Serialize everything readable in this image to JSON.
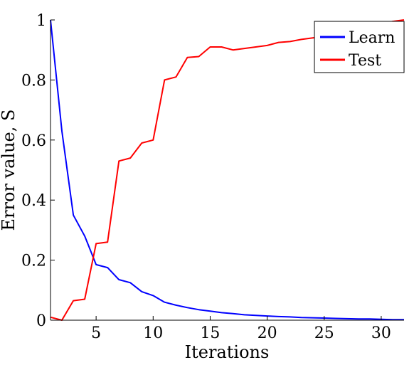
{
  "chart_data": {
    "type": "line",
    "title": "",
    "xlabel": "Iterations",
    "ylabel": "Error value, S",
    "xlim": [
      1,
      32
    ],
    "ylim": [
      0,
      1
    ],
    "xticks": [
      5,
      10,
      15,
      20,
      25,
      30
    ],
    "xtick_labels": [
      "5",
      "10",
      "15",
      "20",
      "25",
      "30"
    ],
    "yticks": [
      0,
      0.2,
      0.4,
      0.6,
      0.8,
      1
    ],
    "ytick_labels": [
      "0",
      "0.2",
      "0.4",
      "0.6",
      "0.8",
      "1"
    ],
    "grid": false,
    "legend_position": "top-right",
    "series": [
      {
        "name": "Learn",
        "color": "#0000ff",
        "x": [
          1,
          2,
          3,
          4,
          5,
          6,
          7,
          8,
          9,
          10,
          11,
          12,
          13,
          14,
          15,
          16,
          17,
          18,
          19,
          20,
          21,
          22,
          23,
          24,
          25,
          26,
          27,
          28,
          29,
          30,
          31,
          32
        ],
        "y": [
          1.0,
          0.63,
          0.35,
          0.28,
          0.185,
          0.175,
          0.135,
          0.125,
          0.095,
          0.082,
          0.06,
          0.05,
          0.042,
          0.035,
          0.03,
          0.025,
          0.022,
          0.018,
          0.016,
          0.014,
          0.012,
          0.011,
          0.009,
          0.008,
          0.007,
          0.006,
          0.005,
          0.004,
          0.004,
          0.003,
          0.002,
          0.002
        ]
      },
      {
        "name": "Test",
        "color": "#ff0000",
        "x": [
          1,
          2,
          3,
          4,
          5,
          6,
          7,
          8,
          9,
          10,
          11,
          12,
          13,
          14,
          15,
          16,
          17,
          18,
          19,
          20,
          21,
          22,
          23,
          24,
          25,
          26,
          27,
          28,
          29,
          30,
          31,
          32
        ],
        "y": [
          0.01,
          0.0,
          0.065,
          0.07,
          0.255,
          0.26,
          0.53,
          0.54,
          0.59,
          0.6,
          0.8,
          0.81,
          0.875,
          0.878,
          0.91,
          0.91,
          0.9,
          0.905,
          0.91,
          0.915,
          0.925,
          0.928,
          0.935,
          0.94,
          0.945,
          0.95,
          0.96,
          0.97,
          0.98,
          0.985,
          0.995,
          1.0
        ]
      }
    ]
  }
}
